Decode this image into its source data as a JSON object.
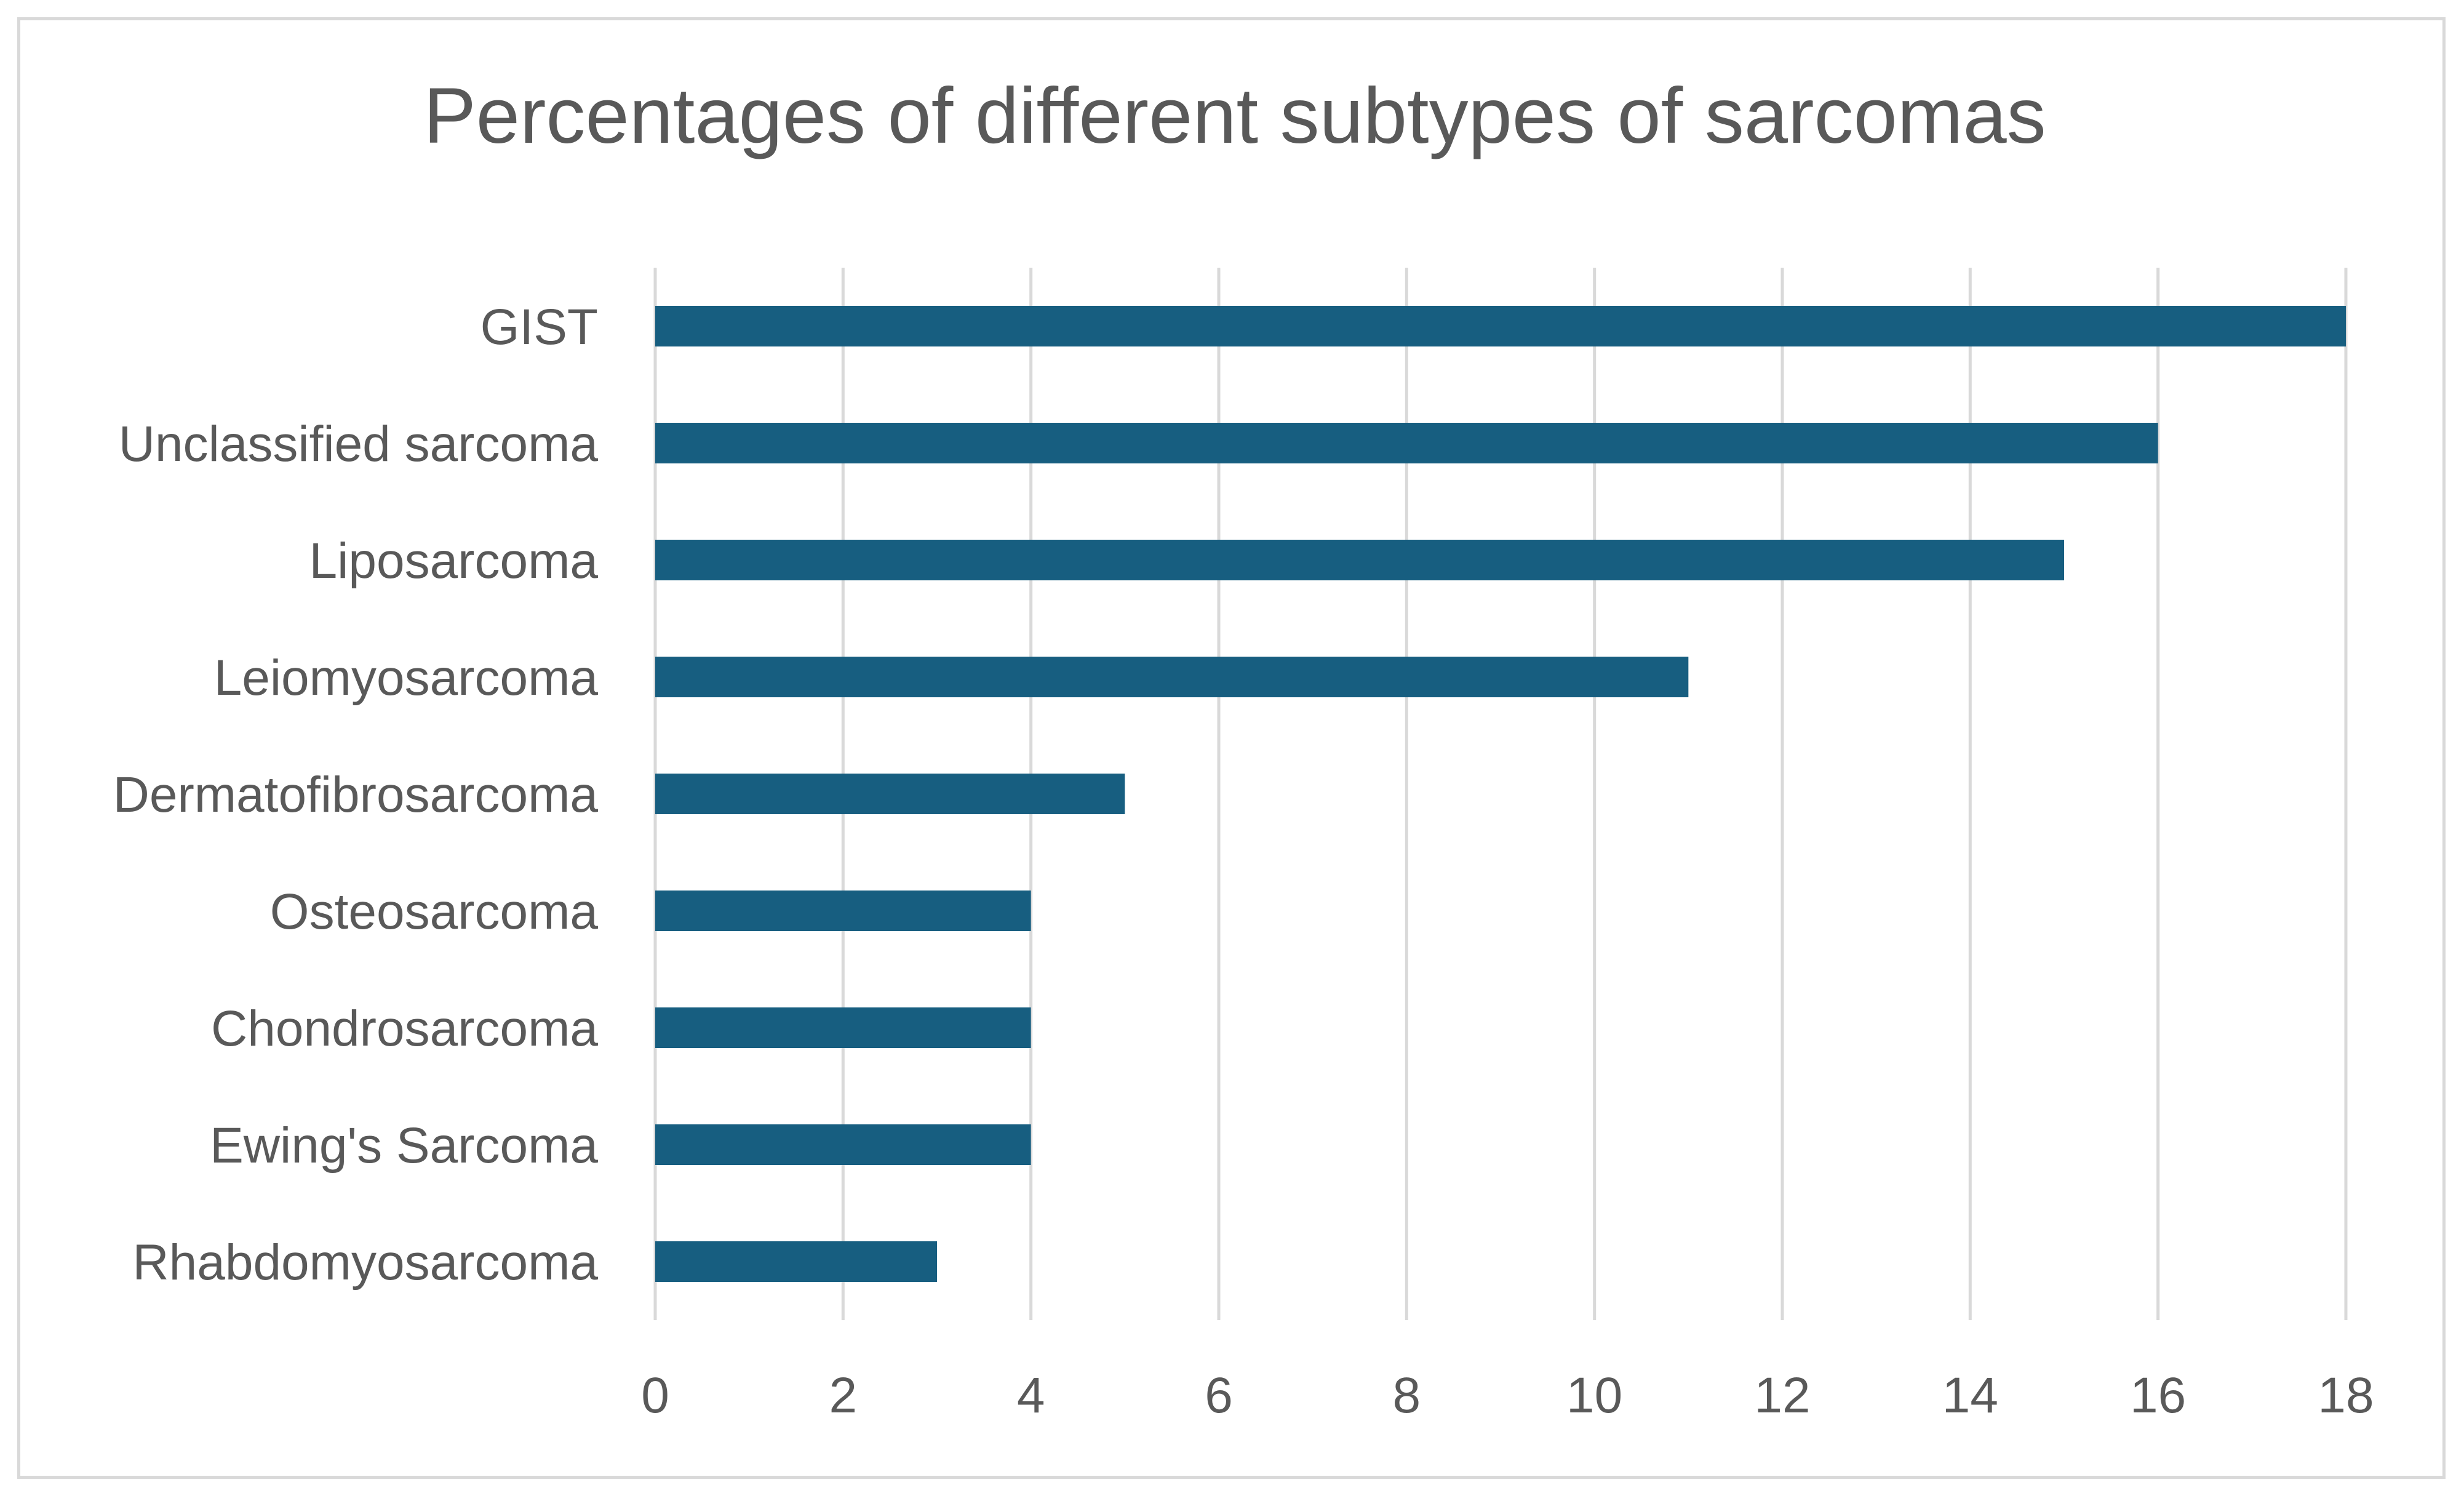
{
  "chart_data": {
    "type": "bar",
    "orientation": "horizontal",
    "title": "Percentages of different subtypes of sarcomas",
    "xlabel": "",
    "ylabel": "",
    "categories": [
      "GIST",
      "Unclassified sarcoma",
      "Liposarcoma",
      "Leiomyosarcoma",
      "Dermatofibrosarcoma",
      "Osteosarcoma",
      "Chondrosarcoma",
      "Ewing's Sarcoma",
      "Rhabdomyosarcoma"
    ],
    "values": [
      18,
      16,
      15,
      11,
      5,
      4,
      4,
      4,
      3
    ],
    "xlim": [
      0,
      18
    ],
    "xticks": [
      "0",
      "2",
      "4",
      "6",
      "8",
      "10",
      "12",
      "14",
      "16",
      "18"
    ],
    "grid": "vertical",
    "legend": "none",
    "bar_color": "#175e80",
    "grid_color": "#d9d9d9",
    "text_color": "#595959"
  }
}
